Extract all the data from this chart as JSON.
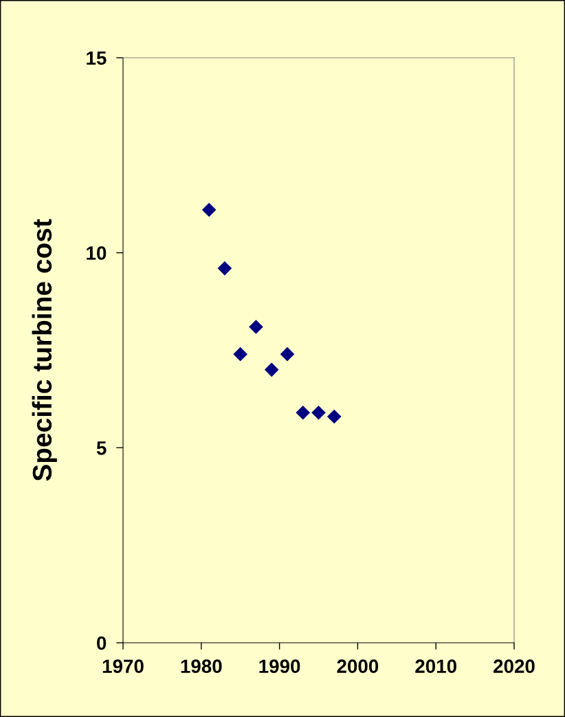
{
  "chart_data": {
    "type": "scatter",
    "ylabel": "Specific turbine cost",
    "x": [
      1981,
      1983,
      1985,
      1987,
      1989,
      1991,
      1993,
      1995,
      1997
    ],
    "values": [
      11.1,
      9.6,
      7.4,
      8.1,
      7.0,
      7.4,
      5.9,
      5.9,
      5.8
    ],
    "color": "#000080",
    "marker": "diamond",
    "grid": false,
    "xlim": [
      1970,
      2020
    ],
    "xticks": [
      1970,
      1980,
      1990,
      2000,
      2010,
      2020
    ],
    "ylim": [
      0,
      15
    ],
    "yticks": [
      0,
      5,
      10,
      15
    ]
  }
}
